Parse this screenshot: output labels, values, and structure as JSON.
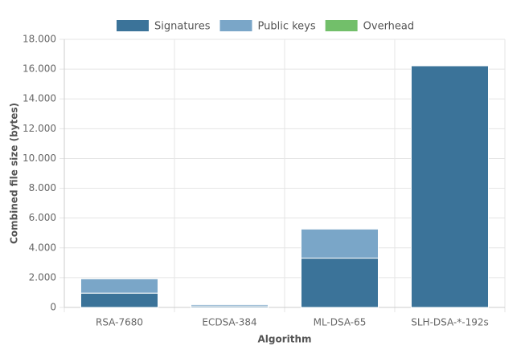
{
  "chart_data": {
    "type": "stacked-bar",
    "x_label": "Algorithm",
    "y_label": "Combined file size (bytes)",
    "categories": [
      "RSA-7680",
      "ECDSA-384",
      "ML-DSA-65",
      "SLH-DSA-*-192s"
    ],
    "series": [
      {
        "name": "Signatures",
        "color": "#3b7399",
        "values": [
          960,
          96,
          3309,
          16224
        ]
      },
      {
        "name": "Public keys",
        "color": "#7aa6c8",
        "values": [
          960,
          97,
          1952,
          48
        ]
      },
      {
        "name": "Overhead",
        "color": "#72bf6a",
        "values": [
          0,
          0,
          0,
          0
        ]
      }
    ],
    "ylim": [
      0,
      18000
    ],
    "yticks": [
      0,
      {
        "value": 2000,
        "label": "2.000"
      },
      {
        "value": 4000,
        "label": "4.000"
      },
      {
        "value": 6000,
        "label": "6.000"
      },
      {
        "value": 8000,
        "label": "8.000"
      },
      {
        "value": 10000,
        "label": "10.000"
      },
      {
        "value": 12000,
        "label": "12.000"
      },
      {
        "value": 14000,
        "label": "14.000"
      },
      {
        "value": 16000,
        "label": "16.000"
      },
      {
        "value": 18000,
        "label": "18.000"
      }
    ],
    "grid": true,
    "legend": "top"
  }
}
